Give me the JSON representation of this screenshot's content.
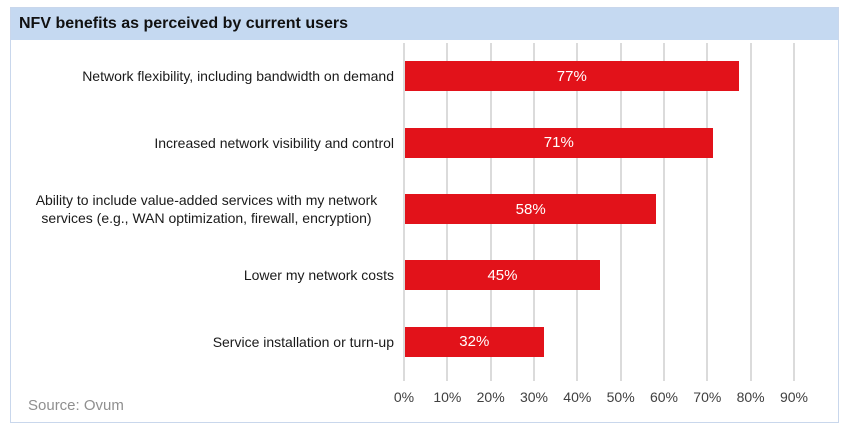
{
  "title": "NFV benefits as perceived by current users",
  "source": "Source: Ovum",
  "colors": {
    "bar": "#e2121a",
    "title_background": "#c5d9f1",
    "gridline": "#dbdbdb",
    "border": "#c9d7ec",
    "bar_value_text": "#ffffff"
  },
  "chart_data": {
    "type": "bar",
    "orientation": "horizontal",
    "title": "NFV benefits as perceived by current users",
    "categories": [
      "Network flexibility, including bandwidth on demand",
      "Increased network visibility and control",
      "Ability to include value-added services with my network services (e.g., WAN optimization, firewall, encryption)",
      "Lower my network costs",
      "Service installation or turn-up"
    ],
    "values": [
      77,
      71,
      58,
      45,
      32
    ],
    "value_labels": [
      "77%",
      "71%",
      "58%",
      "45%",
      "32%"
    ],
    "x_ticks": [
      "0%",
      "10%",
      "20%",
      "30%",
      "40%",
      "50%",
      "60%",
      "70%",
      "80%",
      "90%"
    ],
    "xlim": [
      0,
      90
    ],
    "xlabel": "",
    "ylabel": "",
    "grid": "vertical",
    "legend": "none",
    "source": "Source: Ovum"
  }
}
